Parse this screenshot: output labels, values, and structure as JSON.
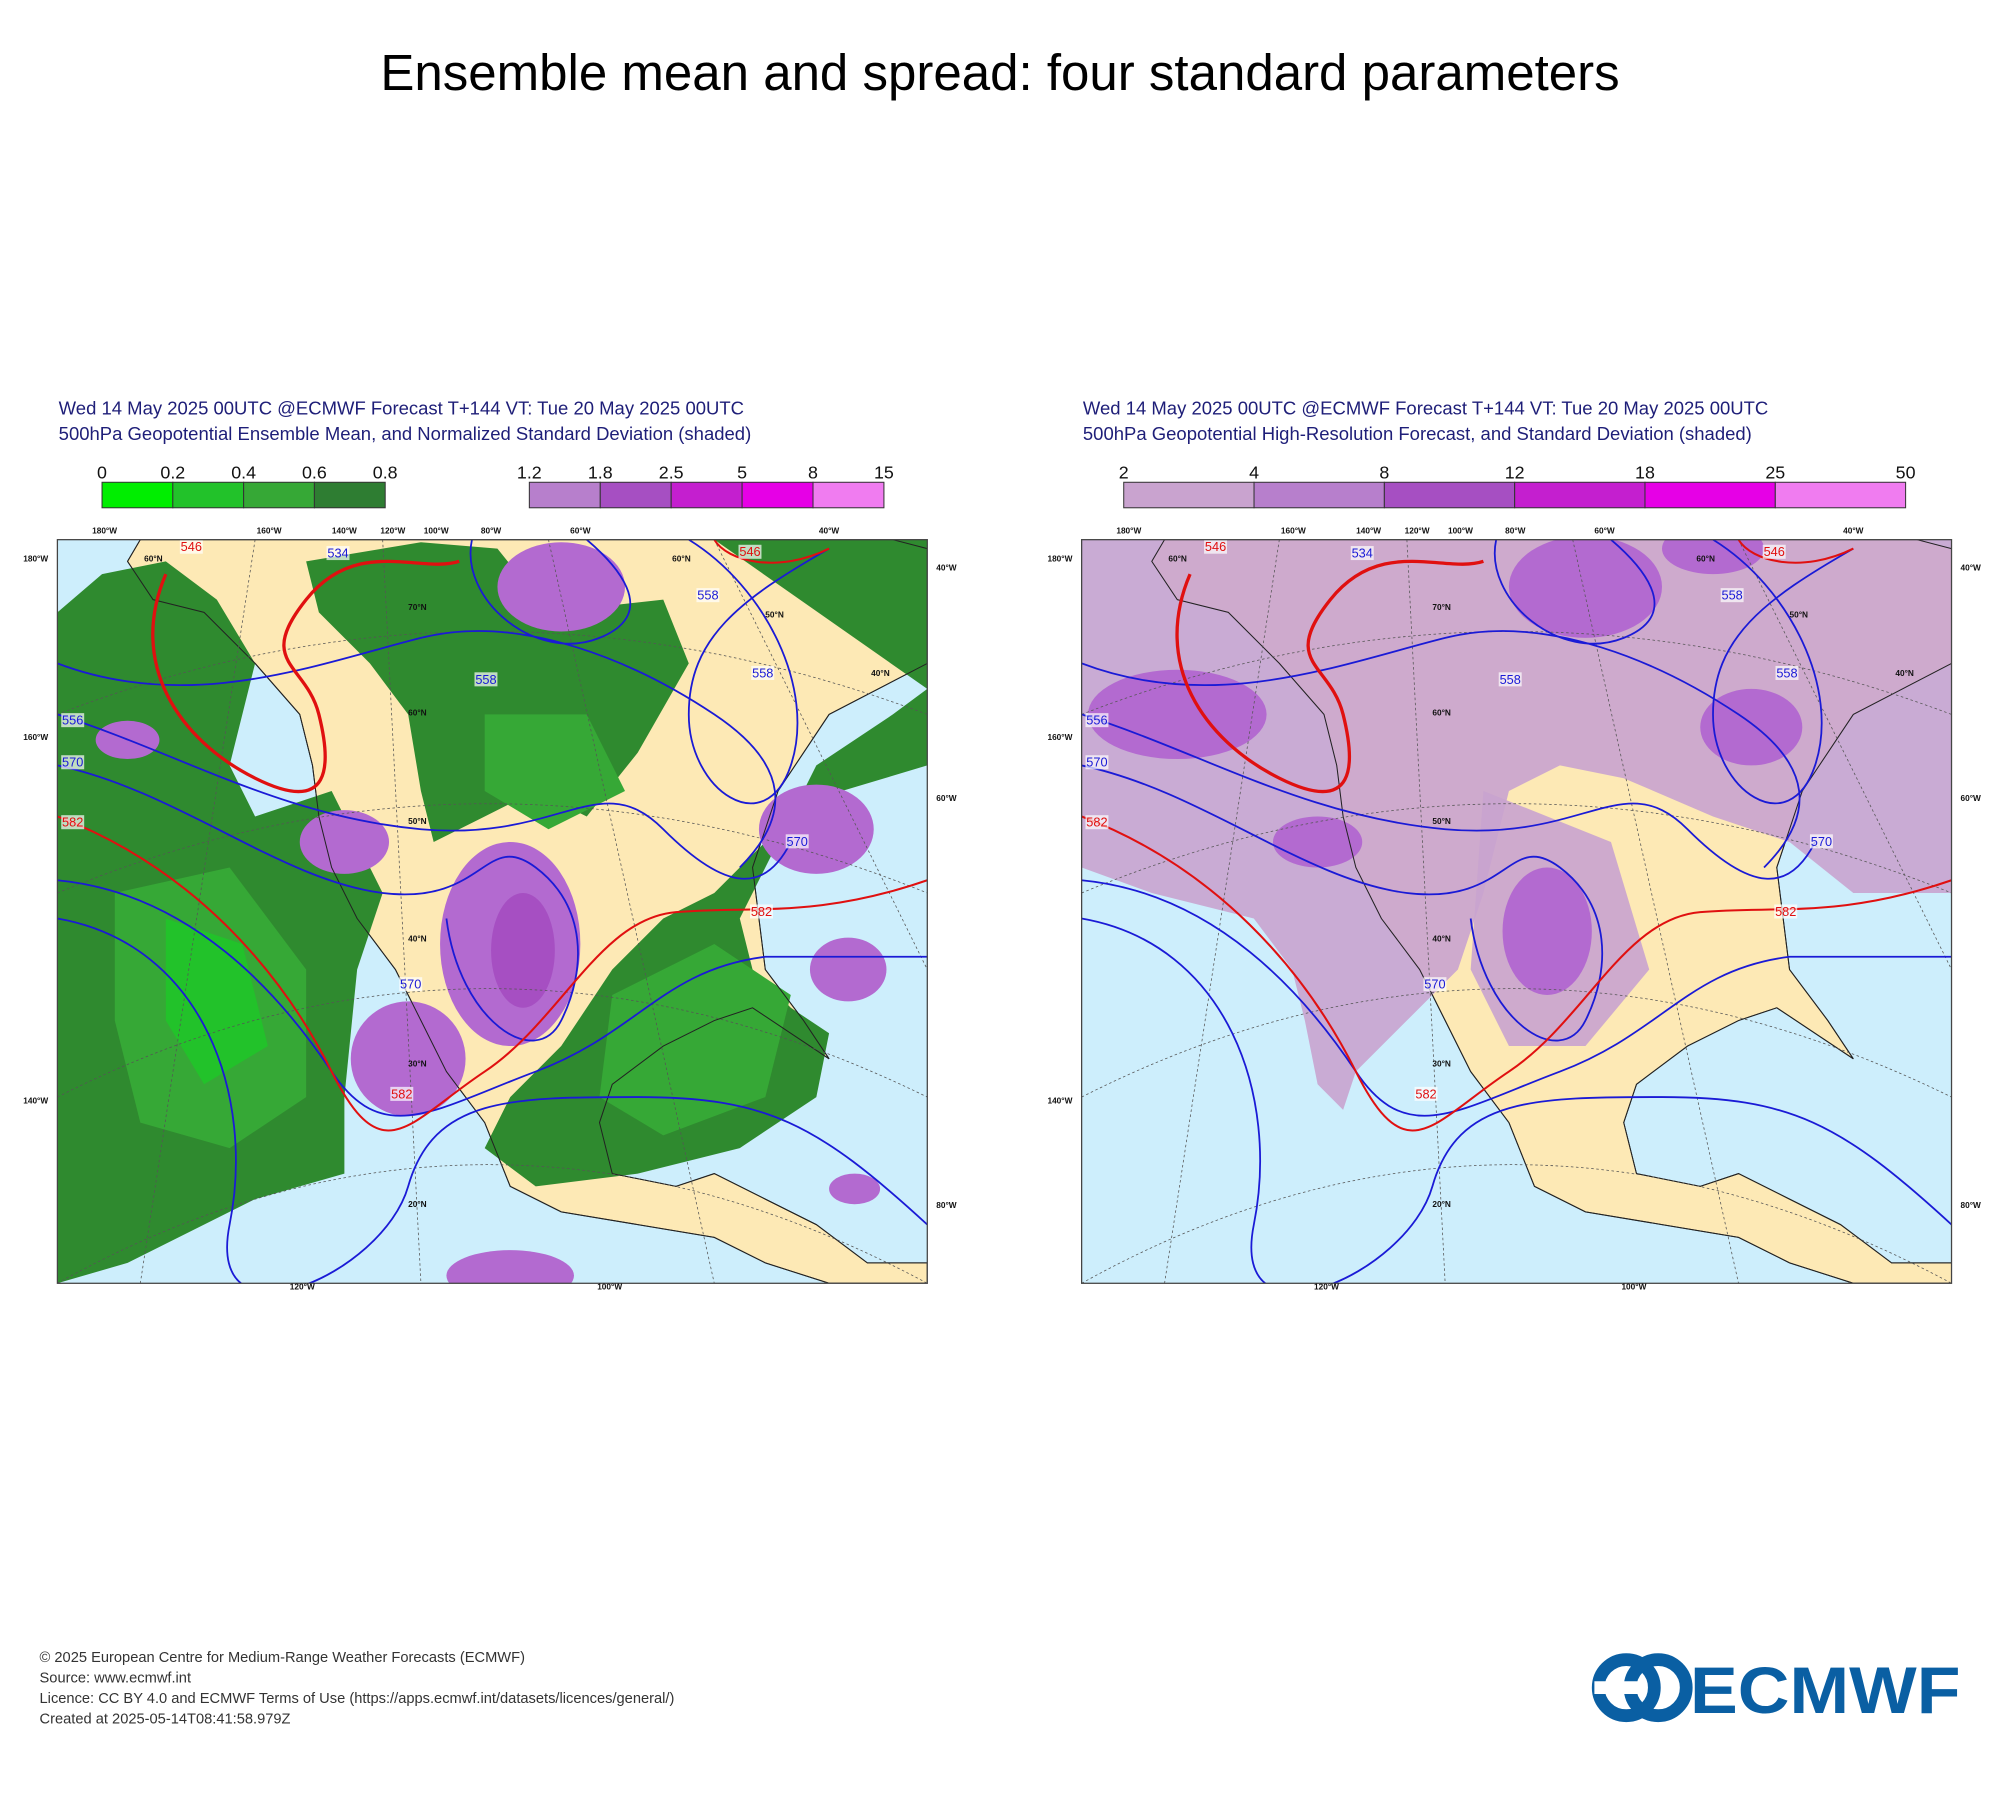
{
  "title": "Ensemble mean and spread: four standard parameters",
  "panels": [
    {
      "header": [
        "Wed 14 May 2025 00UTC @ECMWF Forecast T+144 VT: Tue 20 May 2025 00UTC",
        "500hPa Geopotential Ensemble Mean, and Normalized Standard Deviation (shaded)"
      ],
      "colorbars": [
        {
          "labels": [
            "0",
            "0.2",
            "0.4",
            "0.6",
            "0.8"
          ],
          "colors": [
            "#00ee00",
            "#22c22a",
            "#36a836",
            "#2e7d32"
          ]
        },
        {
          "labels": [
            "1.2",
            "1.8",
            "2.5",
            "5",
            "8",
            "15"
          ],
          "colors": [
            "#b77fcc",
            "#a64fc2",
            "#c41fcf",
            "#e600e6",
            "#f07cf0"
          ]
        }
      ],
      "lon_labels": [
        "180°W",
        "160°W",
        "140°W",
        "120°W",
        "100°W",
        "80°W",
        "60°W",
        "40°W",
        "180°W",
        "160°W",
        "140°W",
        "40°W",
        "60°W",
        "80°W",
        "120°W",
        "100°W"
      ],
      "lat_labels": [
        "60°N",
        "70°N",
        "60°N",
        "50°N",
        "40°N",
        "30°N",
        "20°N",
        "60°N",
        "50°N",
        "40°N"
      ],
      "contour_labels": [
        "546",
        "534",
        "546",
        "558",
        "558",
        "558",
        "556",
        "570",
        "582",
        "570",
        "582",
        "570",
        "582"
      ]
    },
    {
      "header": [
        "Wed 14 May 2025 00UTC @ECMWF Forecast T+144 VT: Tue 20 May 2025 00UTC",
        "500hPa Geopotential High-Resolution Forecast, and Standard Deviation (shaded)"
      ],
      "colorbars": [
        {
          "labels": [
            "2",
            "4",
            "8",
            "12",
            "18",
            "25",
            "50"
          ],
          "colors": [
            "#c9a3cf",
            "#b77fcc",
            "#a64fc2",
            "#c41fcf",
            "#e600e6",
            "#f07cf0"
          ]
        }
      ],
      "lon_labels": [
        "180°W",
        "160°W",
        "140°W",
        "120°W",
        "100°W",
        "80°W",
        "60°W",
        "40°W",
        "180°W",
        "160°W",
        "140°W",
        "40°W",
        "60°W",
        "80°W",
        "120°W",
        "100°W"
      ],
      "lat_labels": [
        "60°N",
        "70°N",
        "60°N",
        "50°N",
        "40°N",
        "30°N",
        "20°N",
        "60°N",
        "50°N",
        "40°N"
      ],
      "contour_labels": [
        "546",
        "534",
        "546",
        "558",
        "558",
        "558",
        "556",
        "570",
        "582",
        "570",
        "582",
        "570",
        "582"
      ]
    }
  ],
  "footer": [
    "© 2025 European Centre for Medium-Range Weather Forecasts (ECMWF)",
    "Source: www.ecmwf.int",
    "Licence: CC BY 4.0 and ECMWF Terms of Use (https://apps.ecmwf.int/datasets/licences/general/)",
    "Created at 2025-05-14T08:41:58.979Z"
  ],
  "logo": "ECMWF"
}
